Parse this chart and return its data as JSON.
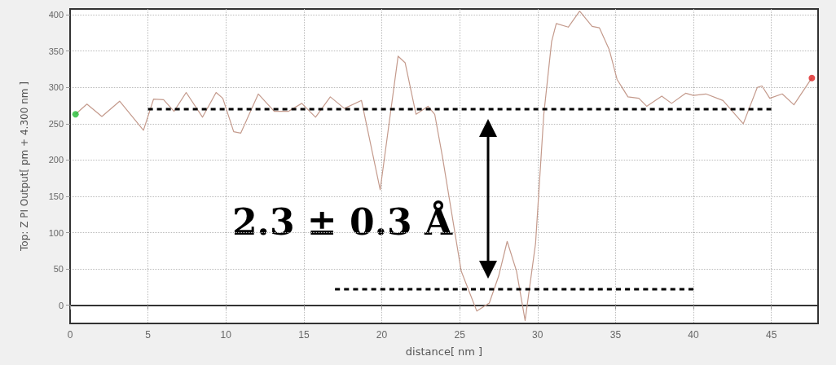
{
  "chart_data": {
    "type": "line",
    "xlabel": "distance[ nm ]",
    "ylabel": "Top: Z PI Output[ pm + 4.300 nm ]",
    "xlim": [
      0,
      48
    ],
    "xticks": [
      0,
      5,
      10,
      15,
      20,
      25,
      30,
      35,
      40,
      45
    ],
    "ylim": [
      -25,
      408
    ],
    "yticks": [
      0,
      50,
      100,
      150,
      200,
      250,
      300,
      350,
      400
    ],
    "grid": true,
    "annotations": [
      "2.3 ± 0.3 Å"
    ],
    "series": [
      {
        "color": "#c49a8c",
        "line_style": "solid",
        "marker": "none",
        "x": [
          0.35,
          1.08,
          2.04,
          3.18,
          4.71,
          5.36,
          6.0,
          6.67,
          7.45,
          8.5,
          9.37,
          9.8,
          10.5,
          10.95,
          12.08,
          13.1,
          14.0,
          14.87,
          15.75,
          16.7,
          17.6,
          18.7,
          19.9,
          21.05,
          21.5,
          22.2,
          22.97,
          23.4,
          23.9,
          25.1,
          26.1,
          26.9,
          27.5,
          28.05,
          28.65,
          29.2,
          29.87,
          30.4,
          30.9,
          31.2,
          31.97,
          32.7,
          33.5,
          33.97,
          34.6,
          35.1,
          35.8,
          36.5,
          37.0,
          37.97,
          38.6,
          39.5,
          40.0,
          40.8,
          41.9,
          43.2,
          44.1,
          44.4,
          44.9,
          45.7,
          46.45,
          47.6
        ],
        "values": [
          263,
          277,
          260,
          281,
          241,
          284,
          283,
          267,
          293,
          259,
          293,
          285,
          239,
          237,
          291,
          267,
          267,
          278,
          259,
          287,
          271,
          282,
          159,
          343,
          334,
          263,
          274,
          263,
          204,
          47,
          -8,
          3,
          40,
          88,
          47,
          -21,
          85,
          263,
          363,
          388,
          383,
          405,
          384,
          382,
          352,
          311,
          287,
          285,
          274,
          288,
          278,
          292,
          289,
          291,
          282,
          250,
          300,
          302,
          285,
          291,
          276,
          313
        ]
      },
      {
        "color": "#000000",
        "line_style": "dashed",
        "marker": "none",
        "x": [
          5,
          45
        ],
        "values": [
          270,
          270
        ]
      },
      {
        "color": "#000000",
        "line_style": "dashed",
        "marker": "none",
        "x": [
          17,
          40
        ],
        "values": [
          22,
          22
        ]
      },
      {
        "type": "scatter",
        "color": "#22bb33",
        "marker": "circle",
        "x": [
          0.35
        ],
        "values": [
          263
        ]
      },
      {
        "type": "scatter",
        "color": "#dd2222",
        "marker": "circle",
        "x": [
          47.6
        ],
        "values": [
          313
        ]
      }
    ]
  }
}
